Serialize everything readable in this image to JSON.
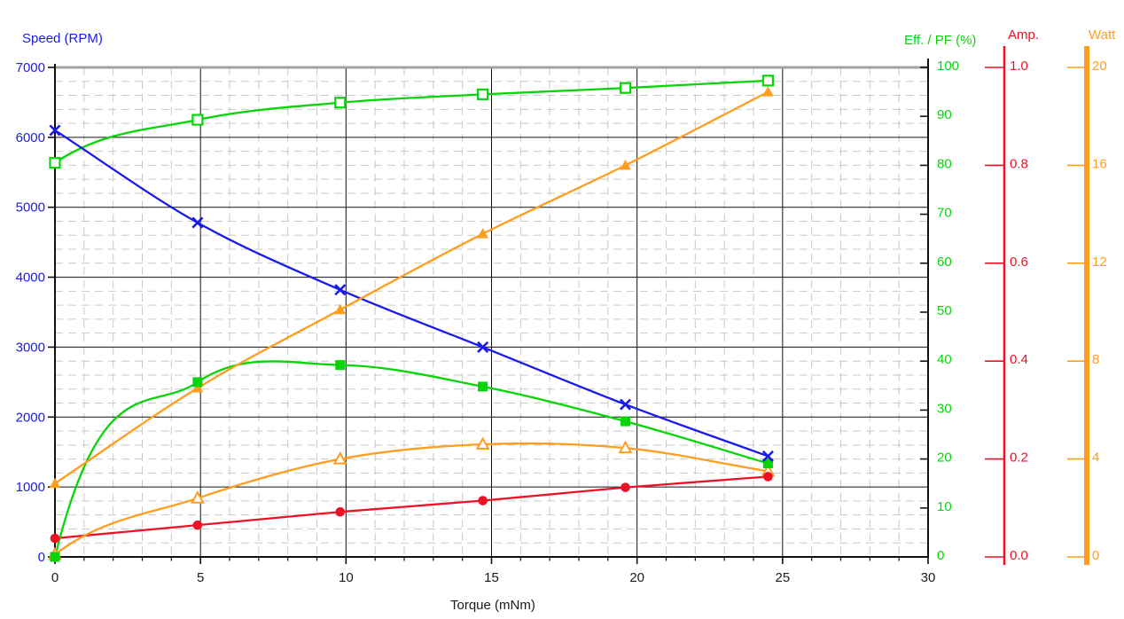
{
  "chart_data": {
    "type": "line",
    "title": "",
    "x_axis": {
      "label": "Torque (mNm)",
      "range": [
        0,
        30
      ],
      "major_tick": 5,
      "minor_tick": 1,
      "tick_values": [
        0,
        5,
        10,
        15,
        20,
        25,
        30
      ],
      "tick_labels": [
        "0",
        "5",
        "10",
        "15",
        "20",
        "25",
        "30"
      ]
    },
    "y_axes": {
      "speed": {
        "title": "Speed (RPM)",
        "color": "#1a1aee",
        "range": [
          0,
          7000
        ],
        "major_tick": 1000,
        "minor_tick": 200,
        "tick_values": [
          7000,
          6000,
          5000,
          4000,
          3000,
          2000,
          1000,
          0
        ],
        "tick_labels": [
          "7000",
          "6000",
          "5000",
          "4000",
          "3000",
          "2000",
          "1000",
          "0"
        ]
      },
      "eff_pf": {
        "title": "Eff. / PF (%)",
        "color": "#07d507",
        "range": [
          0,
          100
        ],
        "major_tick": 10,
        "tick_values": [
          100,
          90,
          80,
          70,
          60,
          50,
          40,
          30,
          20,
          10,
          0
        ],
        "tick_labels": [
          "100",
          "90",
          "80",
          "70",
          "60",
          "50",
          "40",
          "30",
          "20",
          "10",
          "0"
        ]
      },
      "amp": {
        "title": "Amp.",
        "color": "#ee1126",
        "range": [
          0,
          1
        ],
        "major_tick": 0.2,
        "tick_values": [
          1.0,
          0.8,
          0.6,
          0.4,
          0.2,
          0.0
        ],
        "tick_labels": [
          "1.0",
          "0.8",
          "0.6",
          "0.4",
          "0.2",
          "0.0"
        ]
      },
      "watt": {
        "title": "Watt",
        "color": "#ff9d1e",
        "range": [
          0,
          20
        ],
        "major_tick": 4,
        "tick_values": [
          20,
          16,
          12,
          8,
          4,
          0
        ],
        "tick_labels": [
          "20",
          "16",
          "12",
          "8",
          "4",
          "0"
        ]
      }
    },
    "x": [
      0,
      4.9,
      9.8,
      14.7,
      19.6,
      24.5
    ],
    "series": [
      {
        "id": "speed",
        "axis": "speed",
        "marker": "x-cross",
        "color": "#1a1aee",
        "values": [
          6100,
          4780,
          3820,
          3000,
          2180,
          1440
        ]
      },
      {
        "id": "pf",
        "axis": "eff_pf",
        "marker": "open-square",
        "color": "#07d507",
        "values": [
          80.5,
          89.3,
          92.8,
          94.5,
          95.8,
          97.3
        ]
      },
      {
        "id": "eff",
        "axis": "eff_pf",
        "marker": "filled-square",
        "color": "#07d507",
        "values": [
          0,
          35.7,
          39.2,
          34.8,
          27.7,
          19.1
        ]
      },
      {
        "id": "watt_in",
        "axis": "watt",
        "marker": "filled-triangle",
        "color": "#ff9d1e",
        "values": [
          3.0,
          6.9,
          10.1,
          13.2,
          16.0,
          19.0
        ]
      },
      {
        "id": "watt_out",
        "axis": "watt",
        "marker": "open-triangle",
        "color": "#ff9d1e",
        "values": [
          0.1,
          2.4,
          4.0,
          4.6,
          4.45,
          3.5
        ]
      },
      {
        "id": "amp",
        "axis": "amp",
        "marker": "filled-circle",
        "color": "#ee1126",
        "values": [
          0.038,
          0.065,
          0.092,
          0.115,
          0.142,
          0.164
        ]
      }
    ],
    "layout_hints": {
      "grid": "major solid black, minor dashed gray",
      "legend": "none"
    }
  }
}
